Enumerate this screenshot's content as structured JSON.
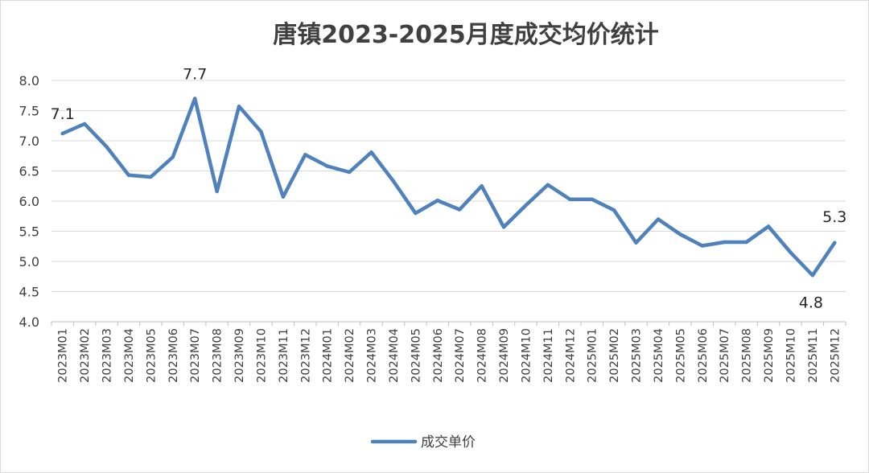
{
  "chart_data": {
    "type": "line",
    "title": "唐镇2023-2025月度成交均价统计",
    "xlabel": "",
    "ylabel": "",
    "ylim": [
      4.0,
      8.0
    ],
    "y_ticks": [
      "8.0",
      "7.5",
      "7.0",
      "6.5",
      "6.0",
      "5.5",
      "5.0",
      "4.5",
      "4.0"
    ],
    "grid": true,
    "legend_position": "bottom",
    "categories": [
      "2023M01",
      "2023M02",
      "2023M03",
      "2023M04",
      "2023M05",
      "2023M06",
      "2023M07",
      "2023M08",
      "2023M09",
      "2023M10",
      "2023M11",
      "2023M12",
      "2024M01",
      "2024M02",
      "2024M03",
      "2024M04",
      "2024M05",
      "2024M06",
      "2024M07",
      "2024M08",
      "2024M09",
      "2024M10",
      "2024M11",
      "2024M12",
      "2025M01",
      "2025M02",
      "2025M03",
      "2025M04",
      "2025M05",
      "2025M06",
      "2025M07",
      "2025M08",
      "2025M09",
      "2025M10",
      "2025M11",
      "2025M12"
    ],
    "series": [
      {
        "name": "成交单价",
        "color": "#4f81bd",
        "values": [
          7.12,
          7.28,
          6.9,
          6.43,
          6.4,
          6.73,
          7.7,
          6.16,
          7.57,
          7.15,
          6.07,
          6.77,
          6.58,
          6.48,
          6.81,
          6.33,
          5.8,
          6.01,
          5.86,
          6.25,
          5.57,
          5.93,
          6.27,
          6.03,
          6.03,
          5.85,
          5.31,
          5.7,
          5.45,
          5.26,
          5.32,
          5.32,
          5.58,
          5.15,
          4.77,
          5.31
        ]
      }
    ],
    "data_labels": [
      {
        "index": 0,
        "text": "7.1"
      },
      {
        "index": 6,
        "text": "7.7"
      },
      {
        "index": 34,
        "text": "4.8"
      },
      {
        "index": 35,
        "text": "5.3"
      }
    ]
  }
}
